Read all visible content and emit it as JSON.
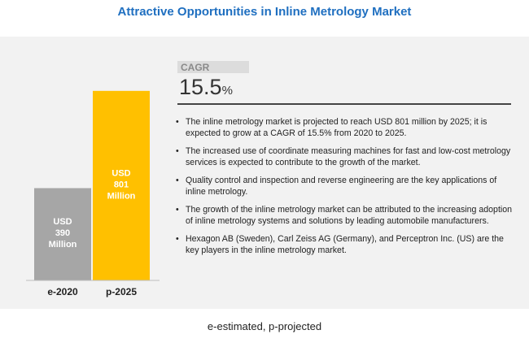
{
  "title": "Attractive Opportunities in Inline Metrology Market",
  "chart_data": {
    "type": "bar",
    "categories": [
      "e-2020",
      "p-2025"
    ],
    "values": [
      390,
      801
    ],
    "data_labels": [
      [
        "USD",
        "390",
        "Million"
      ],
      [
        "USD",
        "801",
        "Million"
      ]
    ],
    "colors": [
      "#a6a6a6",
      "#ffc000"
    ],
    "ylim": [
      0,
      900
    ],
    "grid": false,
    "legend": "none"
  },
  "cagr": {
    "label": "CAGR",
    "value": "15.5",
    "unit": "%"
  },
  "bullets": [
    "The inline metrology market is projected to reach USD 801 million by 2025; it is expected to grow at a CAGR of 15.5% from 2020 to 2025.",
    "The increased use of coordinate measuring machines for fast and low-cost metrology services is expected to contribute to the growth of the market.",
    "Quality control and inspection and reverse engineering are the key applications of inline metrology.",
    "The growth of the inline metrology market can be attributed to the increasing adoption of inline metrology systems and solutions by leading automobile manufacturers.",
    "Hexagon AB (Sweden), Carl Zeiss AG (Germany), and Perceptron Inc. (US) are the key players in the inline metrology market."
  ],
  "bullet_symbol": "•",
  "footnote": "e-estimated, p-projected"
}
